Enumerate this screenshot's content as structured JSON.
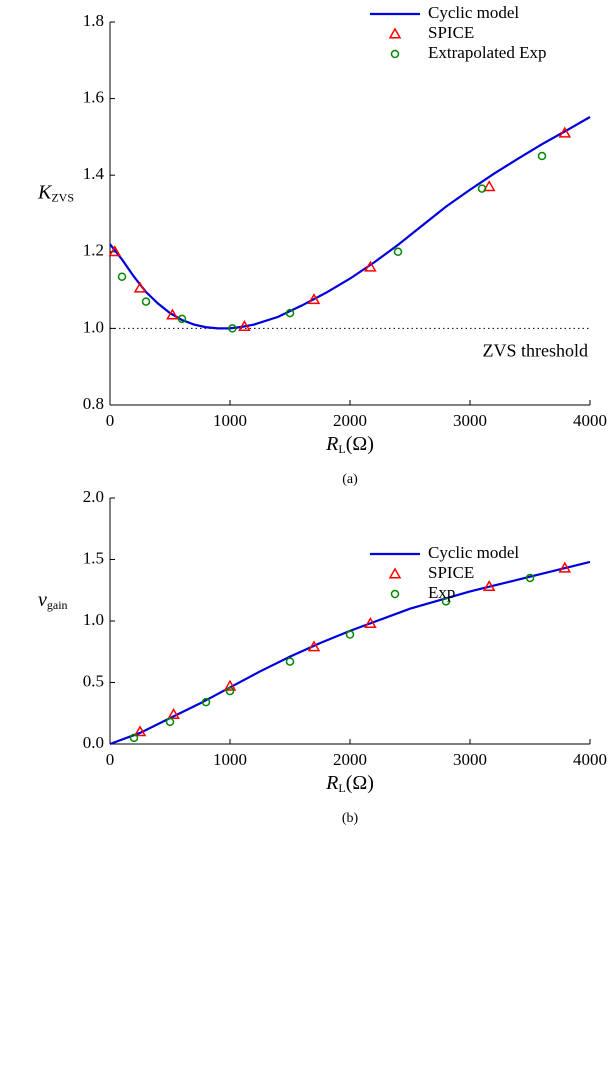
{
  "chart_data": [
    {
      "type": "line",
      "caption": "(a)",
      "xlabel": "R",
      "xlabel_sub": "L",
      "xlabel_unit": "(Ω)",
      "ylabel": "K",
      "ylabel_sub": "ZVS",
      "xlim": [
        0,
        4000
      ],
      "xticks": [
        0,
        1000,
        2000,
        3000,
        4000
      ],
      "ylim": [
        0.8,
        1.8
      ],
      "yticks": [
        0.8,
        {
          "value": 1,
          "label": "1.0"
        },
        1.2,
        1.4,
        1.6,
        1.8
      ],
      "threshold": 1,
      "annotation": "ZVS threshold",
      "legend": "upper right",
      "series": [
        {
          "name": "Cyclic model",
          "color": "#0000dd",
          "marker": "line",
          "x": [
            0,
            100,
            200,
            300,
            400,
            500,
            600,
            700,
            800,
            900,
            1000,
            1100,
            1200,
            1400,
            1600,
            1800,
            2000,
            2200,
            2400,
            2600,
            2800,
            3000,
            3200,
            3400,
            3600,
            3800,
            4000
          ],
          "values": [
            1.22,
            1.18,
            1.135,
            1.095,
            1.065,
            1.04,
            1.022,
            1.01,
            1.003,
            1.0,
            1.0,
            1.004,
            1.01,
            1.03,
            1.06,
            1.093,
            1.13,
            1.172,
            1.218,
            1.268,
            1.318,
            1.362,
            1.404,
            1.443,
            1.481,
            1.516,
            1.552
          ]
        },
        {
          "name": "SPICE",
          "color": "#ff0000",
          "marker": "triangle",
          "x": [
            40,
            250,
            520,
            1120,
            1700,
            2170,
            3160,
            3790
          ],
          "values": [
            1.2,
            1.105,
            1.035,
            1.005,
            1.075,
            1.16,
            1.37,
            1.51
          ]
        },
        {
          "name": "Extrapolated Exp",
          "color": "#008800",
          "marker": "circle",
          "x": [
            100,
            300,
            600,
            1020,
            1500,
            2400,
            3100,
            3600
          ],
          "values": [
            1.135,
            1.07,
            1.025,
            1.0,
            1.04,
            1.2,
            1.365,
            1.45
          ]
        }
      ]
    },
    {
      "type": "line",
      "caption": "(b)",
      "xlabel": "R",
      "xlabel_sub": "L",
      "xlabel_unit": "(Ω)",
      "ylabel": "v",
      "ylabel_sub": "gain",
      "xlim": [
        0,
        4000
      ],
      "xticks": [
        0,
        1000,
        2000,
        3000,
        4000
      ],
      "ylim": [
        0,
        2
      ],
      "yticks": [
        {
          "value": 0,
          "label": "0.0"
        },
        0.5,
        {
          "value": 1,
          "label": "1.0"
        },
        1.5,
        {
          "value": 2,
          "label": "2.0"
        }
      ],
      "legend": "upper right",
      "series": [
        {
          "name": "Cyclic model",
          "color": "#0000dd",
          "marker": "line",
          "x": [
            0,
            250,
            500,
            750,
            1000,
            1250,
            1500,
            1750,
            2000,
            2250,
            2500,
            2750,
            3000,
            3250,
            3500,
            3750,
            4000
          ],
          "values": [
            0,
            0.09,
            0.21,
            0.33,
            0.46,
            0.59,
            0.71,
            0.82,
            0.92,
            1.01,
            1.1,
            1.17,
            1.24,
            1.3,
            1.36,
            1.42,
            1.48
          ]
        },
        {
          "name": "SPICE",
          "color": "#ff0000",
          "marker": "triangle",
          "x": [
            250,
            530,
            1000,
            1700,
            2170,
            3160,
            3790
          ],
          "values": [
            0.1,
            0.24,
            0.47,
            0.79,
            0.98,
            1.28,
            1.43
          ]
        },
        {
          "name": "Exp",
          "color": "#008800",
          "marker": "circle",
          "x": [
            200,
            500,
            800,
            1000,
            1500,
            2000,
            2800,
            3500
          ],
          "values": [
            0.05,
            0.18,
            0.34,
            0.43,
            0.67,
            0.89,
            1.16,
            1.35
          ]
        }
      ]
    }
  ]
}
